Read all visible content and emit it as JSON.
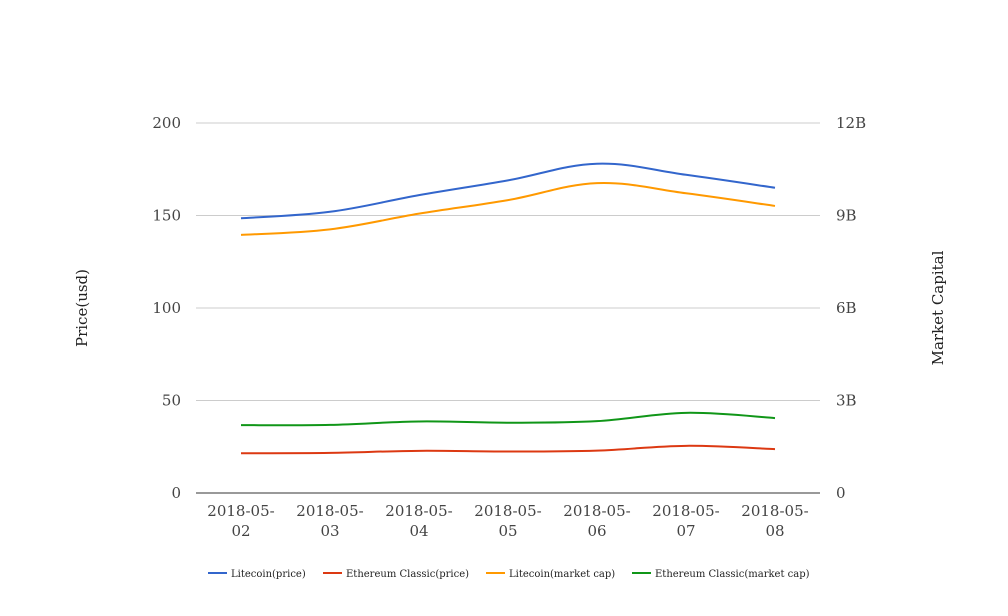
{
  "chart_data": {
    "type": "line",
    "categories": [
      "2018-05-02",
      "2018-05-03",
      "2018-05-04",
      "2018-05-05",
      "2018-05-06",
      "2018-05-07",
      "2018-05-08"
    ],
    "category_labels": [
      [
        "2018-05-",
        "02"
      ],
      [
        "2018-05-",
        "03"
      ],
      [
        "2018-05-",
        "04"
      ],
      [
        "2018-05-",
        "05"
      ],
      [
        "2018-05-",
        "06"
      ],
      [
        "2018-05-",
        "07"
      ],
      [
        "2018-05-",
        "08"
      ]
    ],
    "y_left": {
      "label": "Price(usd)",
      "ylim": [
        0,
        200
      ],
      "ticks": [
        0,
        50,
        100,
        150,
        200
      ],
      "tick_labels": [
        "0",
        "50",
        "100",
        "150",
        "200"
      ]
    },
    "y_right": {
      "label": "Market Capital",
      "ylim": [
        0,
        12000000000
      ],
      "ticks": [
        0,
        3000000000,
        6000000000,
        9000000000,
        12000000000
      ],
      "tick_labels": [
        "0",
        "3B",
        "6B",
        "9B",
        "12B"
      ]
    },
    "grid": true,
    "legend_position": "bottom",
    "series": [
      {
        "name": "Litecoin(price)",
        "axis": "left",
        "color": "#3366cc",
        "values": [
          148.5,
          152,
          161,
          169,
          178,
          172,
          165
        ]
      },
      {
        "name": "Ethereum Classic(price)",
        "axis": "left",
        "color": "#dc3912",
        "values": [
          21.5,
          21.7,
          22.8,
          22.4,
          22.9,
          25.5,
          23.7
        ]
      },
      {
        "name": "Litecoin(market cap)",
        "axis": "right",
        "color": "#ff9900",
        "values": [
          8370000000,
          8550000000,
          9060000000,
          9500000000,
          10050000000,
          9720000000,
          9310000000
        ]
      },
      {
        "name": "Ethereum Classic(market cap)",
        "axis": "right",
        "color": "#109618",
        "values": [
          2200000000,
          2210000000,
          2320000000,
          2280000000,
          2330000000,
          2600000000,
          2430000000
        ]
      }
    ]
  }
}
